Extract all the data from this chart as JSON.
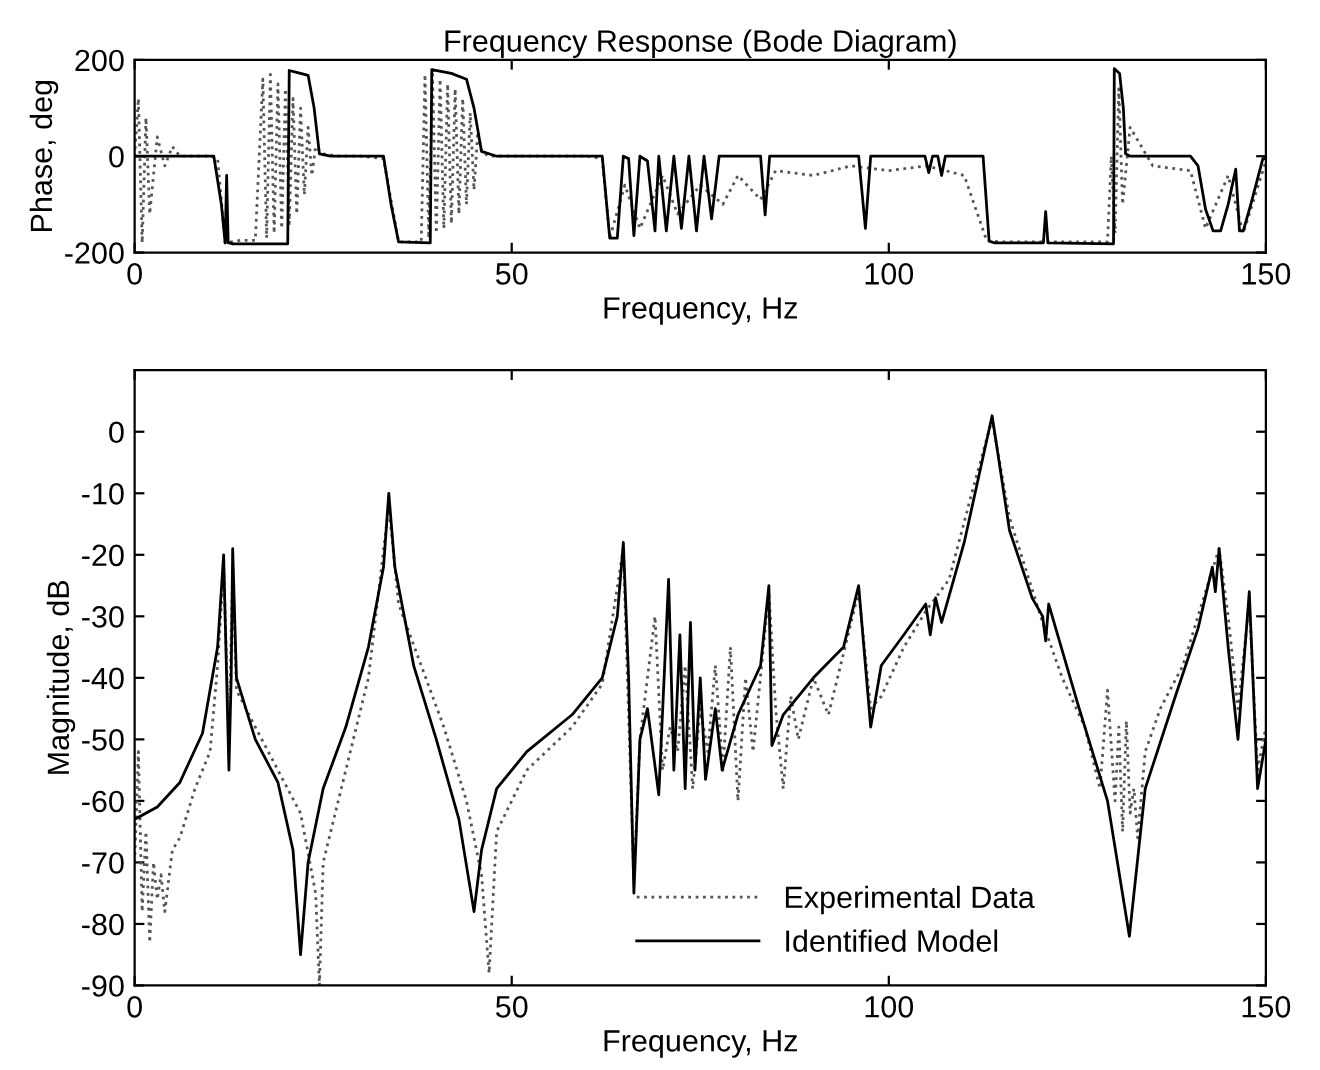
{
  "chart_data": [
    {
      "type": "line",
      "title": "Frequency Response (Bode Diagram)",
      "xlabel": "Frequency, Hz",
      "ylabel": "Phase, deg",
      "xlim": [
        0,
        150
      ],
      "ylim": [
        -200,
        200
      ],
      "xticks": [
        0,
        50,
        100,
        150
      ],
      "yticks": [
        -200,
        0,
        200
      ],
      "series": [
        {
          "color": "#555555",
          "line_style": "dotted",
          "x": [
            0,
            0.5,
            1,
            1.5,
            2,
            3,
            4,
            5,
            6,
            8,
            10,
            11,
            12,
            14,
            16,
            17,
            17.5,
            18,
            18.5,
            19,
            19.5,
            20,
            20.5,
            21,
            21.5,
            22,
            22.5,
            23,
            23.5,
            24,
            25,
            27,
            30,
            33,
            35,
            37,
            38,
            38.5,
            39,
            39.5,
            40,
            40.5,
            41,
            41.5,
            42,
            42.5,
            43,
            43.5,
            44,
            44.5,
            45,
            45.5,
            46,
            47,
            50,
            55,
            60,
            62,
            63,
            65,
            67,
            70,
            72,
            75,
            78,
            80,
            83,
            85,
            90,
            95,
            100,
            105,
            110,
            113,
            115,
            120,
            125,
            129,
            129.5,
            130,
            130.5,
            131,
            132,
            135,
            140,
            142,
            145,
            147,
            150
          ],
          "values": [
            0,
            120,
            -180,
            80,
            -120,
            40,
            -20,
            20,
            0,
            0,
            0,
            -5,
            -180,
            -175,
            -175,
            160,
            -170,
            170,
            -160,
            150,
            -150,
            140,
            -140,
            120,
            -120,
            100,
            -80,
            60,
            -40,
            20,
            5,
            0,
            0,
            -5,
            -178,
            -178,
            -178,
            170,
            -170,
            170,
            -160,
            160,
            -150,
            150,
            -140,
            140,
            -120,
            120,
            -100,
            90,
            -70,
            50,
            10,
            0,
            0,
            0,
            0,
            -5,
            -170,
            -60,
            -150,
            -40,
            -120,
            -60,
            -100,
            -40,
            -90,
            -30,
            -40,
            -20,
            -30,
            -20,
            -40,
            -176,
            -178,
            -178,
            -178,
            -178,
            0,
            -160,
            140,
            -100,
            60,
            -20,
            -30,
            -150,
            -40,
            -160,
            -10
          ]
        },
        {
          "color": "#000000",
          "line_style": "solid",
          "x": [
            0,
            10.5,
            11.5,
            12,
            12.2,
            12.4,
            12.6,
            13,
            16,
            20.3,
            20.5,
            22,
            23,
            23.8,
            24.5,
            26,
            33,
            34,
            35,
            39.2,
            39.4,
            42,
            44,
            45,
            46,
            48,
            55,
            62,
            63,
            64,
            64.8,
            65.5,
            66.2,
            67,
            68,
            69,
            69.5,
            70.5,
            71.5,
            72.5,
            73.5,
            74.5,
            75.5,
            76.5,
            77.5,
            78.5,
            80,
            83,
            83.6,
            84.2,
            86,
            96,
            96.9,
            97.6,
            99,
            104.8,
            105.3,
            105.8,
            106.5,
            107,
            107.5,
            112.5,
            113.3,
            114,
            120.5,
            120.8,
            121.1,
            129.8,
            129.9,
            130.6,
            131.1,
            131.4,
            132,
            140,
            141,
            142,
            143,
            144,
            145,
            146,
            146.5,
            147,
            148,
            149.6,
            150
          ],
          "values": [
            0,
            0,
            -100,
            -180,
            -40,
            -180,
            -180,
            -182,
            -182,
            -182,
            178,
            172,
            168,
            100,
            5,
            0,
            0,
            -100,
            -178,
            -180,
            180,
            172,
            160,
            100,
            10,
            0,
            0,
            0,
            -170,
            -170,
            0,
            -5,
            -165,
            0,
            -10,
            -155,
            0,
            -155,
            0,
            -150,
            0,
            -155,
            0,
            -130,
            0,
            0,
            0,
            0,
            -122,
            0,
            0,
            0,
            -150,
            0,
            0,
            0,
            -34,
            0,
            0,
            -40,
            0,
            0,
            -176,
            -180,
            -180,
            -115,
            -180,
            -182,
            182,
            172,
            100,
            5,
            0,
            0,
            -20,
            -110,
            -155,
            -155,
            -100,
            -27,
            -155,
            -155,
            -100,
            -5,
            -5
          ]
        }
      ]
    },
    {
      "type": "line",
      "xlabel": "Frequency, Hz",
      "ylabel": "Magnitude, dB",
      "xlim": [
        0,
        150
      ],
      "ylim": [
        -90,
        10
      ],
      "xticks": [
        0,
        50,
        100,
        150
      ],
      "yticks": [
        -90,
        -80,
        -70,
        -60,
        -50,
        -40,
        -30,
        -20,
        -10,
        0
      ],
      "legend": "bottom right",
      "series": [
        {
          "name": "Experimental Data",
          "color": "#555555",
          "line_style": "dotted",
          "x": [
            0,
            0.5,
            1,
            1.5,
            2,
            2.5,
            3,
            3.5,
            4,
            5,
            6,
            8,
            10,
            11,
            11.8,
            12.5,
            13,
            13.5,
            16,
            19,
            22,
            24,
            24.5,
            25,
            28,
            31,
            33.7,
            35,
            38,
            41,
            44,
            46,
            47,
            48,
            52,
            58,
            62,
            64.8,
            66.2,
            67,
            69,
            70,
            71,
            72,
            73,
            74,
            75,
            76,
            77,
            78,
            79,
            80,
            81,
            82,
            84.1,
            85,
            86,
            87,
            88,
            90,
            92,
            94,
            96,
            97.6,
            99,
            102,
            105,
            108,
            111,
            113.7,
            116,
            120.4,
            123,
            126,
            128,
            129,
            130,
            130.5,
            131,
            131.5,
            132,
            132.5,
            133,
            134,
            136,
            139,
            142,
            143.8,
            145,
            146.3,
            147.8,
            148.9,
            150
          ],
          "values": [
            -70,
            -52,
            -78,
            -65,
            -83,
            -70,
            -76,
            -72,
            -78,
            -68,
            -66,
            -58,
            -52,
            -38,
            -22,
            -50,
            -22,
            -42,
            -48,
            -55,
            -62,
            -75,
            -90,
            -70,
            -55,
            -40,
            -12,
            -28,
            -38,
            -48,
            -60,
            -72,
            -88,
            -65,
            -55,
            -48,
            -41,
            -19,
            -73,
            -50,
            -30,
            -55,
            -48,
            -52,
            -38,
            -58,
            -45,
            -52,
            -38,
            -55,
            -35,
            -60,
            -40,
            -52,
            -26,
            -45,
            -58,
            -43,
            -50,
            -40,
            -46,
            -36,
            -26,
            -45,
            -43,
            -35,
            -29,
            -24,
            -10,
            2,
            -14,
            -31,
            -40,
            -48,
            -58,
            -42,
            -60,
            -48,
            -65,
            -47,
            -62,
            -58,
            -66,
            -52,
            -45,
            -38,
            -26,
            -19,
            -30,
            -45,
            -28,
            -55,
            -48
          ]
        },
        {
          "name": "Identified Model",
          "color": "#000000",
          "line_style": "solid",
          "x": [
            0,
            3,
            6,
            9,
            11,
            11.8,
            12.2,
            12.5,
            12.8,
            13,
            13.5,
            16,
            19,
            21,
            22,
            23,
            25,
            28,
            31,
            33,
            33.7,
            34.5,
            37,
            40,
            43,
            45,
            46,
            48,
            52,
            58,
            62,
            64,
            64.8,
            65.5,
            66.2,
            67,
            68,
            69.5,
            70.8,
            71.5,
            72.3,
            73,
            73.7,
            74.3,
            75,
            75.7,
            77,
            77.9,
            80,
            83,
            84.1,
            84.5,
            86,
            90,
            94,
            96,
            97.6,
            99,
            102,
            104.9,
            105.5,
            106.2,
            107,
            110,
            113.7,
            116,
            119,
            120.4,
            120.8,
            121.2,
            125,
            129,
            131.9,
            134,
            138,
            141,
            142.9,
            143.3,
            143.8,
            145,
            146.3,
            147.8,
            148.9,
            150
          ],
          "values": [
            -63,
            -61,
            -57,
            -49,
            -35,
            -20,
            -40,
            -55,
            -40,
            -19,
            -40,
            -50,
            -57,
            -68,
            -85,
            -70,
            -58,
            -48,
            -35,
            -22,
            -10,
            -22,
            -38,
            -50,
            -63,
            -78,
            -68,
            -58,
            -52,
            -46,
            -40,
            -30,
            -18,
            -40,
            -75,
            -50,
            -45,
            -59,
            -24,
            -55,
            -33,
            -58,
            -31,
            -55,
            -40,
            -56.5,
            -45,
            -55,
            -46,
            -38,
            -25,
            -51,
            -46,
            -40,
            -35,
            -25,
            -48,
            -38,
            -33,
            -28,
            -33,
            -27,
            -31,
            -18,
            2.6,
            -16,
            -27,
            -30,
            -34,
            -28,
            -44,
            -60,
            -82,
            -58,
            -43,
            -32,
            -22,
            -26,
            -19,
            -35,
            -50,
            -26,
            -58,
            -50
          ]
        }
      ]
    }
  ]
}
